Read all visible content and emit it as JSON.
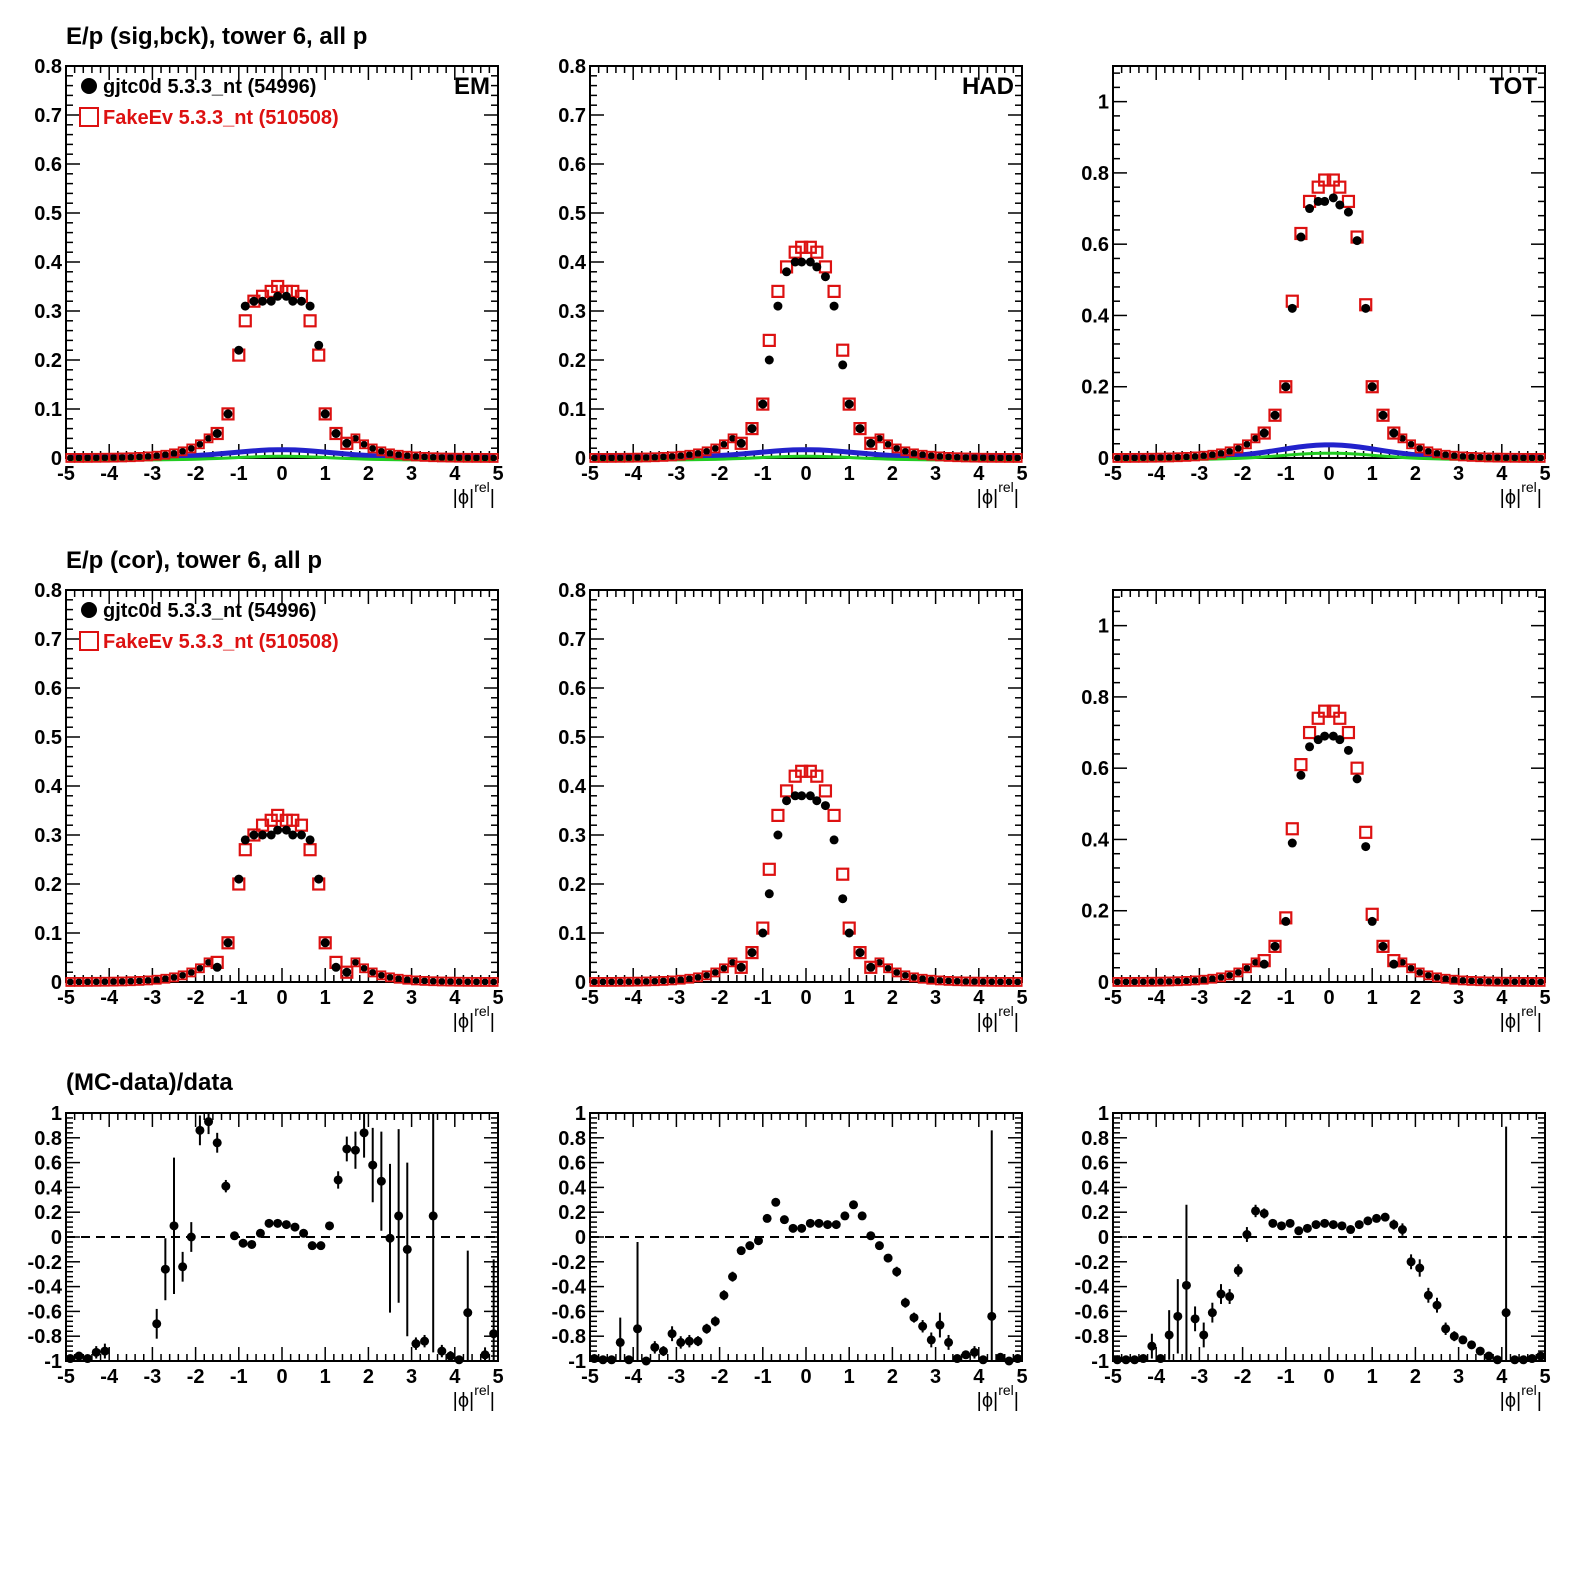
{
  "row_titles": [
    "E/p (sig,bck), tower 6, all p",
    "E/p (cor), tower 6, all p",
    "(MC-data)/data"
  ],
  "legend": [
    {
      "label": "gjtc0d 5.3.3_nt (54996)",
      "color": "#000000",
      "marker": "filled-circle"
    },
    {
      "label": "FakeEv 5.3.3_nt (510508)",
      "color": "#dd1111",
      "marker": "open-square"
    }
  ],
  "colors": {
    "data": "#000000",
    "mc": "#dd1111",
    "bck_data": "#2222cc",
    "bck_mc": "#22cc22"
  },
  "xlabel": "|ϕrel|",
  "xticks": [
    -5,
    -4,
    -3,
    -2,
    -1,
    0,
    1,
    2,
    3,
    4,
    5
  ],
  "chart_data": [
    {
      "type": "scatter",
      "panel": "EM, sig+bck",
      "label": "EM",
      "xlim": [
        -5,
        5
      ],
      "ylim": [
        0,
        0.8
      ],
      "yticks": [
        0,
        0.1,
        0.2,
        0.3,
        0.4,
        0.5,
        0.6,
        0.7,
        0.8
      ],
      "x": [
        -1.5,
        -1.25,
        -1.0,
        -0.85,
        -0.65,
        -0.45,
        -0.25,
        -0.1,
        0.1,
        0.25,
        0.45,
        0.65,
        0.85,
        1.0,
        1.25,
        1.5
      ],
      "series": [
        {
          "name": "gjtc0d 5.3.3_nt (54996)",
          "values": [
            0.05,
            0.09,
            0.22,
            0.31,
            0.32,
            0.32,
            0.32,
            0.33,
            0.33,
            0.32,
            0.32,
            0.31,
            0.23,
            0.09,
            0.05,
            0.03
          ]
        },
        {
          "name": "FakeEv 5.3.3_nt (510508)",
          "values": [
            0.05,
            0.09,
            0.21,
            0.28,
            0.32,
            0.33,
            0.34,
            0.35,
            0.34,
            0.34,
            0.33,
            0.28,
            0.21,
            0.09,
            0.05,
            0.03
          ]
        }
      ]
    },
    {
      "type": "scatter",
      "panel": "HAD, sig+bck",
      "label": "HAD",
      "xlim": [
        -5,
        5
      ],
      "ylim": [
        0,
        0.8
      ],
      "yticks": [
        0,
        0.1,
        0.2,
        0.3,
        0.4,
        0.5,
        0.6,
        0.7,
        0.8
      ],
      "x": [
        -1.5,
        -1.25,
        -1.0,
        -0.85,
        -0.65,
        -0.45,
        -0.25,
        -0.1,
        0.1,
        0.25,
        0.45,
        0.65,
        0.85,
        1.0,
        1.25,
        1.5
      ],
      "series": [
        {
          "name": "gjtc0d 5.3.3_nt (54996)",
          "values": [
            0.03,
            0.06,
            0.11,
            0.2,
            0.31,
            0.38,
            0.4,
            0.4,
            0.4,
            0.39,
            0.37,
            0.31,
            0.19,
            0.11,
            0.06,
            0.03
          ]
        },
        {
          "name": "FakeEv 5.3.3_nt (510508)",
          "values": [
            0.03,
            0.06,
            0.11,
            0.24,
            0.34,
            0.39,
            0.42,
            0.43,
            0.43,
            0.42,
            0.39,
            0.34,
            0.22,
            0.11,
            0.06,
            0.03
          ]
        }
      ]
    },
    {
      "type": "scatter",
      "panel": "TOT, sig+bck",
      "label": "TOT",
      "xlim": [
        -5,
        5
      ],
      "ylim": [
        0,
        1.1
      ],
      "yticks": [
        0,
        0.2,
        0.4,
        0.6,
        0.8,
        1
      ],
      "x": [
        -1.5,
        -1.25,
        -1.0,
        -0.85,
        -0.65,
        -0.45,
        -0.25,
        -0.1,
        0.1,
        0.25,
        0.45,
        0.65,
        0.85,
        1.0,
        1.25,
        1.5
      ],
      "series": [
        {
          "name": "gjtc0d 5.3.3_nt (54996)",
          "values": [
            0.07,
            0.12,
            0.2,
            0.42,
            0.62,
            0.7,
            0.72,
            0.72,
            0.73,
            0.71,
            0.69,
            0.61,
            0.42,
            0.2,
            0.12,
            0.07
          ]
        },
        {
          "name": "FakeEv 5.3.3_nt (510508)",
          "values": [
            0.07,
            0.12,
            0.2,
            0.44,
            0.63,
            0.72,
            0.76,
            0.78,
            0.78,
            0.76,
            0.72,
            0.62,
            0.43,
            0.2,
            0.12,
            0.07
          ]
        }
      ]
    },
    {
      "type": "scatter",
      "panel": "EM, cor",
      "xlim": [
        -5,
        5
      ],
      "ylim": [
        0,
        0.8
      ],
      "yticks": [
        0,
        0.1,
        0.2,
        0.3,
        0.4,
        0.5,
        0.6,
        0.7,
        0.8
      ],
      "x": [
        -1.5,
        -1.25,
        -1.0,
        -0.85,
        -0.65,
        -0.45,
        -0.25,
        -0.1,
        0.1,
        0.25,
        0.45,
        0.65,
        0.85,
        1.0,
        1.25,
        1.5
      ],
      "series": [
        {
          "name": "gjtc0d 5.3.3_nt (54996)",
          "values": [
            0.03,
            0.08,
            0.21,
            0.29,
            0.3,
            0.3,
            0.3,
            0.31,
            0.31,
            0.3,
            0.3,
            0.29,
            0.21,
            0.08,
            0.03,
            0.02
          ]
        },
        {
          "name": "FakeEv 5.3.3_nt (510508)",
          "values": [
            0.04,
            0.08,
            0.2,
            0.27,
            0.3,
            0.32,
            0.33,
            0.34,
            0.33,
            0.33,
            0.32,
            0.27,
            0.2,
            0.08,
            0.04,
            0.02
          ]
        }
      ]
    },
    {
      "type": "scatter",
      "panel": "HAD, cor",
      "xlim": [
        -5,
        5
      ],
      "ylim": [
        0,
        0.8
      ],
      "yticks": [
        0,
        0.1,
        0.2,
        0.3,
        0.4,
        0.5,
        0.6,
        0.7,
        0.8
      ],
      "x": [
        -1.5,
        -1.25,
        -1.0,
        -0.85,
        -0.65,
        -0.45,
        -0.25,
        -0.1,
        0.1,
        0.25,
        0.45,
        0.65,
        0.85,
        1.0,
        1.25,
        1.5
      ],
      "series": [
        {
          "name": "gjtc0d 5.3.3_nt (54996)",
          "values": [
            0.03,
            0.06,
            0.1,
            0.18,
            0.3,
            0.37,
            0.38,
            0.38,
            0.38,
            0.37,
            0.36,
            0.29,
            0.17,
            0.1,
            0.06,
            0.03
          ]
        },
        {
          "name": "FakeEv 5.3.3_nt (510508)",
          "values": [
            0.03,
            0.06,
            0.11,
            0.23,
            0.34,
            0.39,
            0.42,
            0.43,
            0.43,
            0.42,
            0.39,
            0.34,
            0.22,
            0.11,
            0.06,
            0.03
          ]
        }
      ]
    },
    {
      "type": "scatter",
      "panel": "TOT, cor",
      "xlim": [
        -5,
        5
      ],
      "ylim": [
        0,
        1.1
      ],
      "yticks": [
        0,
        0.2,
        0.4,
        0.6,
        0.8,
        1
      ],
      "x": [
        -1.5,
        -1.25,
        -1.0,
        -0.85,
        -0.65,
        -0.45,
        -0.25,
        -0.1,
        0.1,
        0.25,
        0.45,
        0.65,
        0.85,
        1.0,
        1.25,
        1.5
      ],
      "series": [
        {
          "name": "gjtc0d 5.3.3_nt (54996)",
          "values": [
            0.05,
            0.1,
            0.17,
            0.39,
            0.58,
            0.66,
            0.68,
            0.69,
            0.69,
            0.68,
            0.65,
            0.57,
            0.38,
            0.17,
            0.1,
            0.05
          ]
        },
        {
          "name": "FakeEv 5.3.3_nt (510508)",
          "values": [
            0.06,
            0.1,
            0.18,
            0.43,
            0.61,
            0.7,
            0.74,
            0.76,
            0.76,
            0.74,
            0.7,
            0.6,
            0.42,
            0.19,
            0.1,
            0.06
          ]
        }
      ]
    },
    {
      "type": "scatter",
      "panel": "EM, ratio",
      "xlim": [
        -5,
        5
      ],
      "ylim": [
        -1,
        1
      ],
      "yticks": [
        -1,
        -0.8,
        -0.6,
        -0.4,
        -0.2,
        0,
        0.2,
        0.4,
        0.6,
        0.8,
        1
      ],
      "x": [
        -4.9,
        -4.7,
        -4.5,
        -4.3,
        -4.1,
        -2.9,
        -2.7,
        -2.5,
        -2.3,
        -2.1,
        -1.9,
        -1.7,
        -1.5,
        -1.3,
        -1.1,
        -0.9,
        -0.7,
        -0.5,
        -0.3,
        -0.1,
        0.1,
        0.3,
        0.5,
        0.7,
        0.9,
        1.1,
        1.3,
        1.5,
        1.7,
        1.9,
        2.1,
        2.3,
        2.5,
        2.7,
        2.9,
        3.1,
        3.3,
        3.5,
        3.7,
        3.9,
        4.1,
        4.3,
        4.7,
        4.9
      ],
      "values": [
        -0.98,
        -0.96,
        -0.98,
        -0.93,
        -0.92,
        -0.7,
        -0.26,
        0.09,
        -0.24,
        0.0,
        0.86,
        0.93,
        0.76,
        0.41,
        0.01,
        -0.05,
        -0.06,
        0.03,
        0.11,
        0.11,
        0.1,
        0.08,
        0.03,
        -0.07,
        -0.07,
        0.09,
        0.46,
        0.71,
        0.7,
        0.84,
        0.58,
        0.45,
        -0.01,
        0.17,
        -0.1,
        -0.86,
        -0.84,
        0.17,
        -0.92,
        -0.96,
        -0.99,
        -0.61,
        -0.95,
        -0.78
      ],
      "errors": [
        0.02,
        0.03,
        0.03,
        0.05,
        0.06,
        0.12,
        0.25,
        0.55,
        0.12,
        0.12,
        0.12,
        0.1,
        0.08,
        0.05,
        0.02,
        0.02,
        0.02,
        0.02,
        0.02,
        0.02,
        0.02,
        0.02,
        0.02,
        0.02,
        0.02,
        0.03,
        0.07,
        0.1,
        0.15,
        0.2,
        0.3,
        0.4,
        0.6,
        0.7,
        0.7,
        0.05,
        0.05,
        1.1,
        0.05,
        0.04,
        0.03,
        0.5,
        0.06,
        0.6
      ]
    },
    {
      "type": "scatter",
      "panel": "HAD, ratio",
      "xlim": [
        -5,
        5
      ],
      "ylim": [
        -1,
        1
      ],
      "yticks": [
        -1,
        -0.8,
        -0.6,
        -0.4,
        -0.2,
        0,
        0.2,
        0.4,
        0.6,
        0.8,
        1
      ],
      "x": [
        -4.9,
        -4.7,
        -4.5,
        -4.3,
        -4.1,
        -3.9,
        -3.7,
        -3.5,
        -3.3,
        -3.1,
        -2.9,
        -2.7,
        -2.5,
        -2.3,
        -2.1,
        -1.9,
        -1.7,
        -1.5,
        -1.3,
        -1.1,
        -0.9,
        -0.7,
        -0.5,
        -0.3,
        -0.1,
        0.1,
        0.3,
        0.5,
        0.7,
        0.9,
        1.1,
        1.3,
        1.5,
        1.7,
        1.9,
        2.1,
        2.3,
        2.5,
        2.7,
        2.9,
        3.1,
        3.3,
        3.5,
        3.7,
        3.9,
        4.1,
        4.3,
        4.5,
        4.7,
        4.9
      ],
      "values": [
        -0.98,
        -0.99,
        -0.99,
        -0.85,
        -0.99,
        -0.74,
        -1.0,
        -0.89,
        -0.92,
        -0.78,
        -0.85,
        -0.84,
        -0.84,
        -0.74,
        -0.68,
        -0.47,
        -0.32,
        -0.11,
        -0.07,
        -0.03,
        0.15,
        0.28,
        0.14,
        0.07,
        0.07,
        0.11,
        0.11,
        0.1,
        0.1,
        0.17,
        0.26,
        0.17,
        0.01,
        -0.07,
        -0.17,
        -0.28,
        -0.53,
        -0.65,
        -0.72,
        -0.83,
        -0.71,
        -0.85,
        -0.98,
        -0.95,
        -0.93,
        -0.99,
        -0.64,
        -0.97,
        -1.0,
        -0.98
      ],
      "errors": [
        0.02,
        0.02,
        0.02,
        0.2,
        0.02,
        0.7,
        0.02,
        0.05,
        0.04,
        0.06,
        0.05,
        0.05,
        0.04,
        0.04,
        0.04,
        0.04,
        0.04,
        0.03,
        0.03,
        0.03,
        0.02,
        0.02,
        0.02,
        0.02,
        0.02,
        0.02,
        0.02,
        0.02,
        0.02,
        0.02,
        0.02,
        0.02,
        0.02,
        0.03,
        0.03,
        0.04,
        0.04,
        0.04,
        0.05,
        0.06,
        0.1,
        0.06,
        0.02,
        0.03,
        0.05,
        0.02,
        1.5,
        0.02,
        0.02,
        0.02
      ]
    },
    {
      "type": "scatter",
      "panel": "TOT, ratio",
      "xlim": [
        -5,
        5
      ],
      "ylim": [
        -1,
        1
      ],
      "yticks": [
        -1,
        -0.8,
        -0.6,
        -0.4,
        -0.2,
        0,
        0.2,
        0.4,
        0.6,
        0.8,
        1
      ],
      "x": [
        -4.9,
        -4.7,
        -4.5,
        -4.3,
        -4.1,
        -3.9,
        -3.7,
        -3.5,
        -3.3,
        -3.1,
        -2.9,
        -2.7,
        -2.5,
        -2.3,
        -2.1,
        -1.9,
        -1.7,
        -1.5,
        -1.3,
        -1.1,
        -0.9,
        -0.7,
        -0.5,
        -0.3,
        -0.1,
        0.1,
        0.3,
        0.5,
        0.7,
        0.9,
        1.1,
        1.3,
        1.5,
        1.7,
        1.9,
        2.1,
        2.3,
        2.5,
        2.7,
        2.9,
        3.1,
        3.3,
        3.5,
        3.7,
        3.9,
        4.1,
        4.3,
        4.5,
        4.7,
        4.9
      ],
      "values": [
        -0.99,
        -0.99,
        -0.99,
        -0.98,
        -0.88,
        -0.98,
        -0.79,
        -0.64,
        -0.39,
        -0.66,
        -0.79,
        -0.61,
        -0.46,
        -0.48,
        -0.27,
        0.02,
        0.21,
        0.19,
        0.11,
        0.09,
        0.11,
        0.05,
        0.07,
        0.1,
        0.11,
        0.1,
        0.09,
        0.06,
        0.1,
        0.13,
        0.15,
        0.16,
        0.1,
        0.06,
        -0.2,
        -0.25,
        -0.47,
        -0.55,
        -0.74,
        -0.8,
        -0.83,
        -0.87,
        -0.92,
        -0.96,
        -0.99,
        -0.61,
        -0.99,
        -0.99,
        -0.98,
        -0.96
      ],
      "errors": [
        0.02,
        0.02,
        0.02,
        0.02,
        0.1,
        0.02,
        0.2,
        0.3,
        0.65,
        0.1,
        0.1,
        0.08,
        0.08,
        0.06,
        0.05,
        0.06,
        0.05,
        0.04,
        0.03,
        0.02,
        0.02,
        0.02,
        0.02,
        0.02,
        0.02,
        0.02,
        0.02,
        0.02,
        0.02,
        0.02,
        0.02,
        0.02,
        0.04,
        0.05,
        0.06,
        0.07,
        0.06,
        0.06,
        0.05,
        0.04,
        0.03,
        0.03,
        0.03,
        0.02,
        0.02,
        1.5,
        0.02,
        0.02,
        0.02,
        0.02
      ]
    }
  ]
}
